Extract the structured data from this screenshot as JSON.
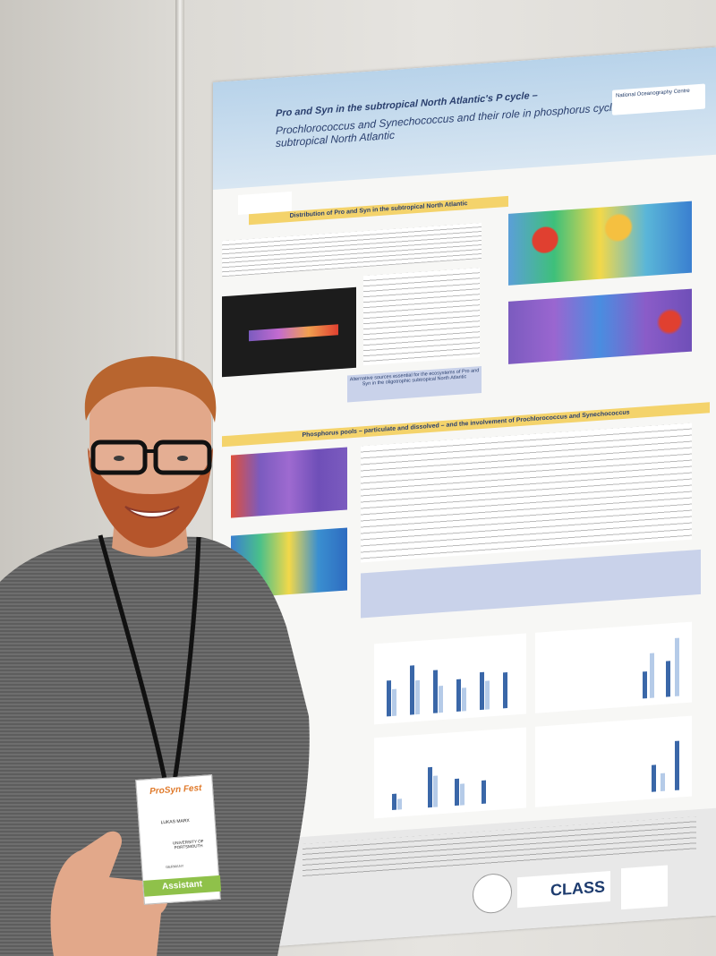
{
  "poster": {
    "title": "Pro and Syn in the subtropical North Atlantic's P cycle –",
    "subtitle": "Prochlorococcus and Synechococcus and their role in phosphorus cycling in the subtropical North Atlantic",
    "noc_logo": "National Oceanography Centre",
    "section1": "Distribution of Pro and Syn in the subtropical North Atlantic",
    "section2": "Phosphorus pools – particulate and dissolved – and the involvement of Prochlorococcus and Synechococcus",
    "callout": "Alternative sources essential for the ecosystems of Pro and Syn in the oligotrophic subtropical North Atlantic",
    "footer_logo": "CLASS"
  },
  "badge": {
    "logo": "ProSyn Fest",
    "name": "LUKAS MARX",
    "org": "UNIVERSITY OF PORTSMOUTH",
    "country": "GERMANY",
    "role": "Assistant"
  },
  "colors": {
    "poster_header": "#b8d3ea",
    "section_bar": "#f4d36b",
    "badge_stripe": "#8fc14a",
    "sweater": "#6e6e6e"
  }
}
